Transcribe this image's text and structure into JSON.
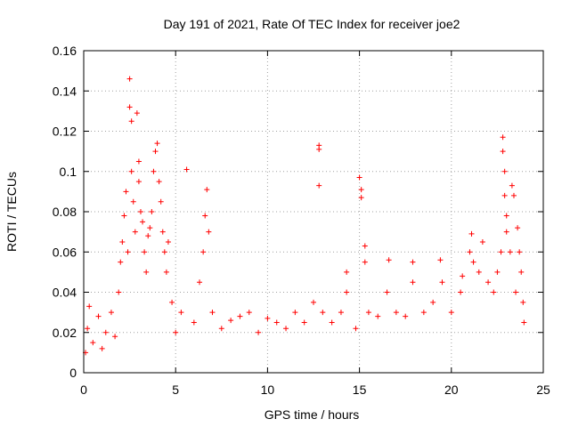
{
  "chart_data": {
    "type": "scatter",
    "title": "Day 191 of 2021, Rate Of TEC Index for receiver joe2",
    "xlabel": "GPS time / hours",
    "ylabel": "ROTI / TECUs",
    "xlim": [
      0,
      25
    ],
    "ylim": [
      0,
      0.16
    ],
    "xticks": [
      0,
      5,
      10,
      15,
      20,
      25
    ],
    "yticks": [
      0,
      0.02,
      0.04,
      0.06,
      0.08,
      0.1,
      0.12,
      0.14,
      0.16
    ],
    "xtick_labels": [
      "0",
      "5",
      "10",
      "15",
      "20",
      "25"
    ],
    "ytick_labels": [
      "0",
      "0.02",
      "0.04",
      "0.06",
      "0.08",
      "0.1",
      "0.12",
      "0.14",
      "0.16"
    ],
    "grid": true,
    "marker": "+",
    "color": "#ff0000",
    "series": [
      {
        "points": [
          [
            0.1,
            0.01
          ],
          [
            0.2,
            0.022
          ],
          [
            0.3,
            0.033
          ],
          [
            0.5,
            0.015
          ],
          [
            0.8,
            0.028
          ],
          [
            1.0,
            0.012
          ],
          [
            1.2,
            0.02
          ],
          [
            1.5,
            0.03
          ],
          [
            1.7,
            0.018
          ],
          [
            1.9,
            0.04
          ],
          [
            2.0,
            0.055
          ],
          [
            2.1,
            0.065
          ],
          [
            2.2,
            0.078
          ],
          [
            2.3,
            0.09
          ],
          [
            2.4,
            0.06
          ],
          [
            2.5,
            0.146
          ],
          [
            2.5,
            0.132
          ],
          [
            2.6,
            0.125
          ],
          [
            2.6,
            0.1
          ],
          [
            2.7,
            0.085
          ],
          [
            2.8,
            0.07
          ],
          [
            2.9,
            0.129
          ],
          [
            3.0,
            0.105
          ],
          [
            3.0,
            0.095
          ],
          [
            3.1,
            0.08
          ],
          [
            3.2,
            0.075
          ],
          [
            3.3,
            0.06
          ],
          [
            3.4,
            0.05
          ],
          [
            3.5,
            0.068
          ],
          [
            3.6,
            0.072
          ],
          [
            3.7,
            0.08
          ],
          [
            3.8,
            0.1
          ],
          [
            3.9,
            0.11
          ],
          [
            4.0,
            0.114
          ],
          [
            4.1,
            0.095
          ],
          [
            4.2,
            0.085
          ],
          [
            4.3,
            0.07
          ],
          [
            4.4,
            0.06
          ],
          [
            4.5,
            0.05
          ],
          [
            4.6,
            0.065
          ],
          [
            4.8,
            0.035
          ],
          [
            5.0,
            0.02
          ],
          [
            5.3,
            0.03
          ],
          [
            5.6,
            0.101
          ],
          [
            6.0,
            0.025
          ],
          [
            6.3,
            0.045
          ],
          [
            6.5,
            0.06
          ],
          [
            6.6,
            0.078
          ],
          [
            6.7,
            0.091
          ],
          [
            6.8,
            0.07
          ],
          [
            7.0,
            0.03
          ],
          [
            7.5,
            0.022
          ],
          [
            8.0,
            0.026
          ],
          [
            8.5,
            0.028
          ],
          [
            9.0,
            0.03
          ],
          [
            9.5,
            0.02
          ],
          [
            10.0,
            0.027
          ],
          [
            10.5,
            0.025
          ],
          [
            11.0,
            0.022
          ],
          [
            11.5,
            0.03
          ],
          [
            12.0,
            0.025
          ],
          [
            12.5,
            0.035
          ],
          [
            12.8,
            0.113
          ],
          [
            12.8,
            0.111
          ],
          [
            12.8,
            0.093
          ],
          [
            13.0,
            0.03
          ],
          [
            13.5,
            0.025
          ],
          [
            14.0,
            0.03
          ],
          [
            14.3,
            0.05
          ],
          [
            14.3,
            0.04
          ],
          [
            14.8,
            0.022
          ],
          [
            15.0,
            0.097
          ],
          [
            15.1,
            0.091
          ],
          [
            15.1,
            0.087
          ],
          [
            15.3,
            0.063
          ],
          [
            15.3,
            0.055
          ],
          [
            15.5,
            0.03
          ],
          [
            16.0,
            0.028
          ],
          [
            16.5,
            0.04
          ],
          [
            16.6,
            0.056
          ],
          [
            17.0,
            0.03
          ],
          [
            17.5,
            0.028
          ],
          [
            17.9,
            0.055
          ],
          [
            17.9,
            0.045
          ],
          [
            18.5,
            0.03
          ],
          [
            19.0,
            0.035
          ],
          [
            19.4,
            0.056
          ],
          [
            19.5,
            0.045
          ],
          [
            20.0,
            0.03
          ],
          [
            20.5,
            0.04
          ],
          [
            20.6,
            0.048
          ],
          [
            21.0,
            0.06
          ],
          [
            21.1,
            0.069
          ],
          [
            21.2,
            0.055
          ],
          [
            21.5,
            0.05
          ],
          [
            21.7,
            0.065
          ],
          [
            22.0,
            0.045
          ],
          [
            22.3,
            0.04
          ],
          [
            22.5,
            0.05
          ],
          [
            22.7,
            0.06
          ],
          [
            22.8,
            0.117
          ],
          [
            22.8,
            0.11
          ],
          [
            22.9,
            0.1
          ],
          [
            22.9,
            0.088
          ],
          [
            23.0,
            0.078
          ],
          [
            23.0,
            0.07
          ],
          [
            23.2,
            0.06
          ],
          [
            23.3,
            0.093
          ],
          [
            23.4,
            0.088
          ],
          [
            23.5,
            0.04
          ],
          [
            23.6,
            0.072
          ],
          [
            23.7,
            0.06
          ],
          [
            23.8,
            0.05
          ],
          [
            23.9,
            0.035
          ],
          [
            23.95,
            0.025
          ]
        ]
      }
    ]
  }
}
